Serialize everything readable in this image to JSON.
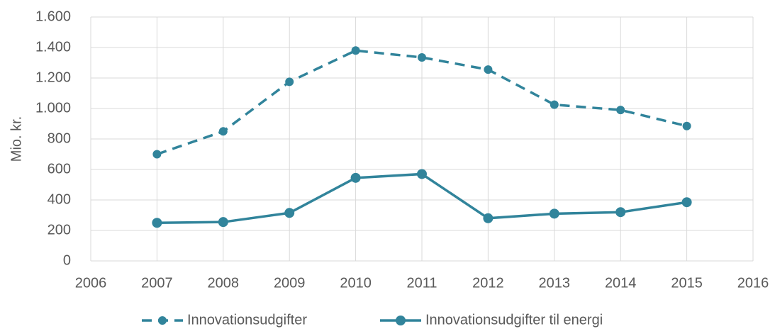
{
  "chart_data": {
    "type": "line",
    "y_label": "Mio. kr.",
    "x": [
      2007,
      2008,
      2009,
      2010,
      2011,
      2012,
      2013,
      2014,
      2015
    ],
    "series": [
      {
        "name": "Innovationsudgifter",
        "color": "#31849b",
        "dash": true,
        "values": [
          700,
          850,
          1175,
          1380,
          1335,
          1255,
          1025,
          990,
          885
        ]
      },
      {
        "name": "Innovationsudgifter til energi",
        "color": "#31849b",
        "dash": false,
        "values": [
          250,
          255,
          315,
          545,
          570,
          280,
          310,
          320,
          385
        ]
      }
    ],
    "xlim": [
      2006,
      2016
    ],
    "xticks": [
      2006,
      2007,
      2008,
      2009,
      2010,
      2011,
      2012,
      2013,
      2014,
      2015,
      2016
    ],
    "ylim": [
      0,
      1600
    ],
    "yticks": [
      0,
      200,
      400,
      600,
      800,
      {
        "value": 1000,
        "label": "1.000"
      },
      {
        "value": 1200,
        "label": "1.200"
      },
      {
        "value": 1400,
        "label": "1.400"
      },
      {
        "value": 1600,
        "label": "1.600"
      }
    ],
    "grid": true,
    "legend": "bottom"
  }
}
